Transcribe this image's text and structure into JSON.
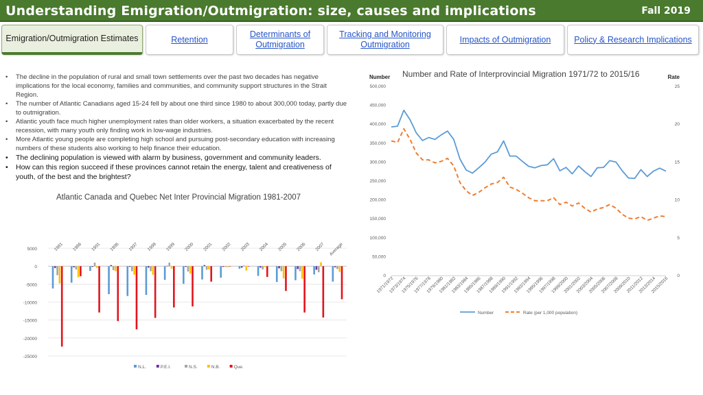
{
  "header": {
    "title": "Understanding Emigration/Outmigration: size, causes and implications",
    "term": "Fall 2019",
    "bg_color": "#4a7a2e"
  },
  "tabs": [
    {
      "label": "Emigration/Outmigration Estimates",
      "active": true
    },
    {
      "label": "Retention",
      "active": false
    },
    {
      "label": "Determinants of Outmigration",
      "active": false
    },
    {
      "label": "Tracking and Monitoring Outmigration",
      "active": false
    },
    {
      "label": "Impacts of Outmigration",
      "active": false
    },
    {
      "label": "Policy & Research Implications",
      "active": false
    }
  ],
  "bullets": [
    {
      "text": "The decline in the population of rural and small town settlements over the past two decades has negative implications for the local economy, families and communities, and community support structures in the Strait Region.",
      "emphasis": false
    },
    {
      "text": "The number of Atlantic Canadians aged 15-24 fell by about one third since 1980 to about 300,000 today, partly due to outmigration.",
      "emphasis": false
    },
    {
      "text": "Atlantic youth face much higher unemployment rates than older workers, a situation exacerbated by the recent recession, with many youth only finding work in low-wage industries.",
      "emphasis": false
    },
    {
      "text": "More Atlantic young people are completing high school and pursuing post-secondary education with increasing numbers of these students also working to help finance their education.",
      "emphasis": false
    },
    {
      "text": "The declining population is viewed with alarm by business, government and community leaders.",
      "emphasis": true
    },
    {
      "text": " How can this region succeed if these provinces cannot retain the energy, talent and creativeness of youth, of the best and the brightest?",
      "emphasis": true
    }
  ],
  "chart_data": [
    {
      "type": "bar",
      "title": "Atlantic Canada and Quebec Net Inter Provincial Migration 1981-2007",
      "categories": [
        "1981",
        "1986",
        "1991",
        "1996",
        "1997",
        "1998",
        "1999",
        "2000",
        "2001",
        "2002",
        "2003",
        "2004",
        "2005",
        "2006",
        "2007",
        "Average"
      ],
      "ylim": [
        -25000,
        5000
      ],
      "yticks": [
        5000,
        0,
        -5000,
        -10000,
        -15000,
        -20000,
        -25000
      ],
      "ytick_labels": [
        "5000",
        "0",
        "-5000",
        "-10000",
        "-15000",
        "-20000",
        "-25000"
      ],
      "legend_position": "bottom",
      "series": [
        {
          "name": "N.L.",
          "color": "#5b9bd5",
          "values": [
            -6200,
            -4600,
            -1300,
            -7800,
            -8300,
            -8000,
            -3800,
            -4900,
            -3700,
            -3200,
            -700,
            -2700,
            -4400,
            -3900,
            -2300,
            -4300
          ]
        },
        {
          "name": "P.E.I.",
          "color": "#7030a0",
          "values": [
            -500,
            -300,
            -200,
            300,
            -200,
            -400,
            100,
            -200,
            300,
            -200,
            -400,
            -400,
            -600,
            -800,
            -1000,
            -300
          ]
        },
        {
          "name": "N.S.",
          "color": "#a5a5a5",
          "values": [
            -2500,
            -900,
            1000,
            -1100,
            -1400,
            -1400,
            1000,
            -1500,
            -1000,
            -200,
            200,
            -900,
            -1400,
            -1400,
            -1700,
            -800
          ]
        },
        {
          "name": "N.B.",
          "color": "#ffc000",
          "values": [
            -4800,
            -3100,
            -500,
            -1400,
            -2400,
            -2400,
            -700,
            -2100,
            -900,
            -300,
            -1200,
            -300,
            -3400,
            -3500,
            1100,
            -1600
          ]
        },
        {
          "name": "Que.",
          "color": "#e3131b",
          "values": [
            -22400,
            -2800,
            -12900,
            -15300,
            -17600,
            -14400,
            -11500,
            -11200,
            -4300,
            0,
            0,
            -3000,
            -6900,
            -12900,
            -14300,
            -9200
          ]
        }
      ]
    },
    {
      "type": "line",
      "title": "Number and Rate of Interprovincial Migration 1971/72 to 2015/16",
      "ylabel_left": "Number",
      "ylabel_right": "Rate",
      "ylim_left": [
        0,
        500000
      ],
      "ylim_right": [
        0,
        25
      ],
      "yticks_left": [
        "0",
        "50,000",
        "100,000",
        "150,000",
        "200,000",
        "250,000",
        "300,000",
        "350,000",
        "400,000",
        "450,000",
        "500,000"
      ],
      "yticks_right": [
        "0",
        "5",
        "10",
        "15",
        "20",
        "25"
      ],
      "x_labels": [
        "1971/1972",
        "1973/1974",
        "1975/1976",
        "1977/1978",
        "1979/1980",
        "1981/1982",
        "1983/1984",
        "1985/1986",
        "1987/1988",
        "1989/1990",
        "1991/1992",
        "1993/1994",
        "1995/1996",
        "1997/1998",
        "1999/2000",
        "2001/2002",
        "2003/2004",
        "2005/2006",
        "2007/2008",
        "2009/2010",
        "2011/2012",
        "2013/2014",
        "2015/2016"
      ],
      "x": [
        "1971/72",
        "1972/73",
        "1973/74",
        "1974/75",
        "1975/76",
        "1976/77",
        "1977/78",
        "1978/79",
        "1979/80",
        "1980/81",
        "1981/82",
        "1982/83",
        "1983/84",
        "1984/85",
        "1985/86",
        "1986/87",
        "1987/88",
        "1988/89",
        "1989/90",
        "1990/91",
        "1991/92",
        "1992/93",
        "1993/94",
        "1994/95",
        "1995/96",
        "1996/97",
        "1997/98",
        "1998/99",
        "1999/00",
        "2000/01",
        "2001/02",
        "2002/03",
        "2003/04",
        "2004/05",
        "2005/06",
        "2006/07",
        "2007/08",
        "2008/09",
        "2009/10",
        "2010/11",
        "2011/12",
        "2012/13",
        "2013/14",
        "2014/15",
        "2015/16"
      ],
      "legend_position": "bottom",
      "series": [
        {
          "name": "Number",
          "color": "#5b9bd5",
          "style": "solid",
          "axis": "left",
          "values": [
            393000,
            395000,
            437000,
            412000,
            377000,
            357000,
            365000,
            360000,
            372000,
            382000,
            360000,
            308000,
            279000,
            271000,
            285000,
            300000,
            321000,
            327000,
            356000,
            316000,
            316000,
            302000,
            289000,
            285000,
            291000,
            293000,
            309000,
            277000,
            286000,
            269000,
            290000,
            275000,
            262000,
            285000,
            286000,
            304000,
            300000,
            277000,
            258000,
            257000,
            280000,
            262000,
            276000,
            284000,
            276000
          ]
        },
        {
          "name": "Rate (per 1,000 population)",
          "color": "#ed7d31",
          "style": "dashed",
          "axis": "right",
          "values": [
            17.8,
            17.6,
            19.4,
            18.0,
            16.2,
            15.3,
            15.3,
            14.9,
            15.1,
            15.5,
            14.5,
            12.3,
            11.2,
            10.6,
            11.0,
            11.6,
            12.1,
            12.3,
            13.0,
            11.7,
            11.4,
            10.9,
            10.3,
            9.9,
            9.9,
            9.9,
            10.3,
            9.4,
            9.7,
            9.2,
            9.6,
            8.9,
            8.4,
            8.8,
            9.0,
            9.4,
            8.9,
            8.1,
            7.6,
            7.5,
            7.8,
            7.3,
            7.6,
            7.9,
            7.8
          ]
        }
      ]
    }
  ]
}
